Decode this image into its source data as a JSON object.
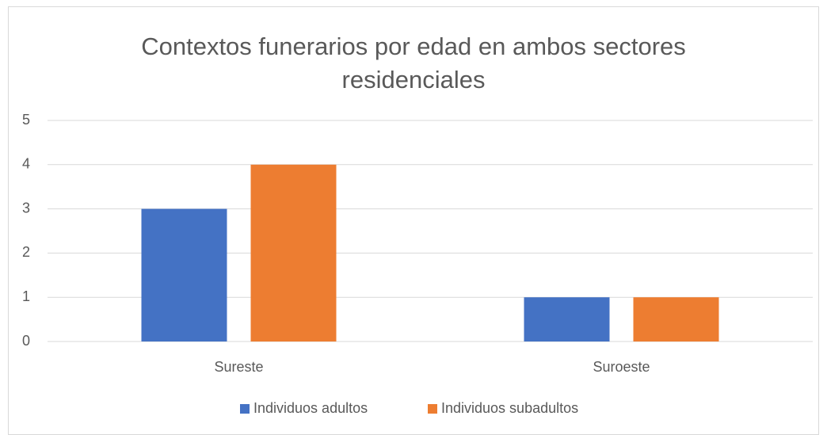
{
  "chart_data": {
    "type": "bar",
    "title": "Contextos funerarios por edad en ambos sectores residenciales",
    "categories": [
      "Sureste",
      "Suroeste"
    ],
    "series": [
      {
        "name": "Individuos adultos",
        "color": "#4472c4",
        "values": [
          3,
          1
        ]
      },
      {
        "name": "Individuos subadultos",
        "color": "#ed7d31",
        "values": [
          4,
          1
        ]
      }
    ],
    "ylim": [
      0,
      5
    ],
    "yticks": [
      0,
      1,
      2,
      3,
      4,
      5
    ],
    "grid": true,
    "legend": "bottom"
  }
}
